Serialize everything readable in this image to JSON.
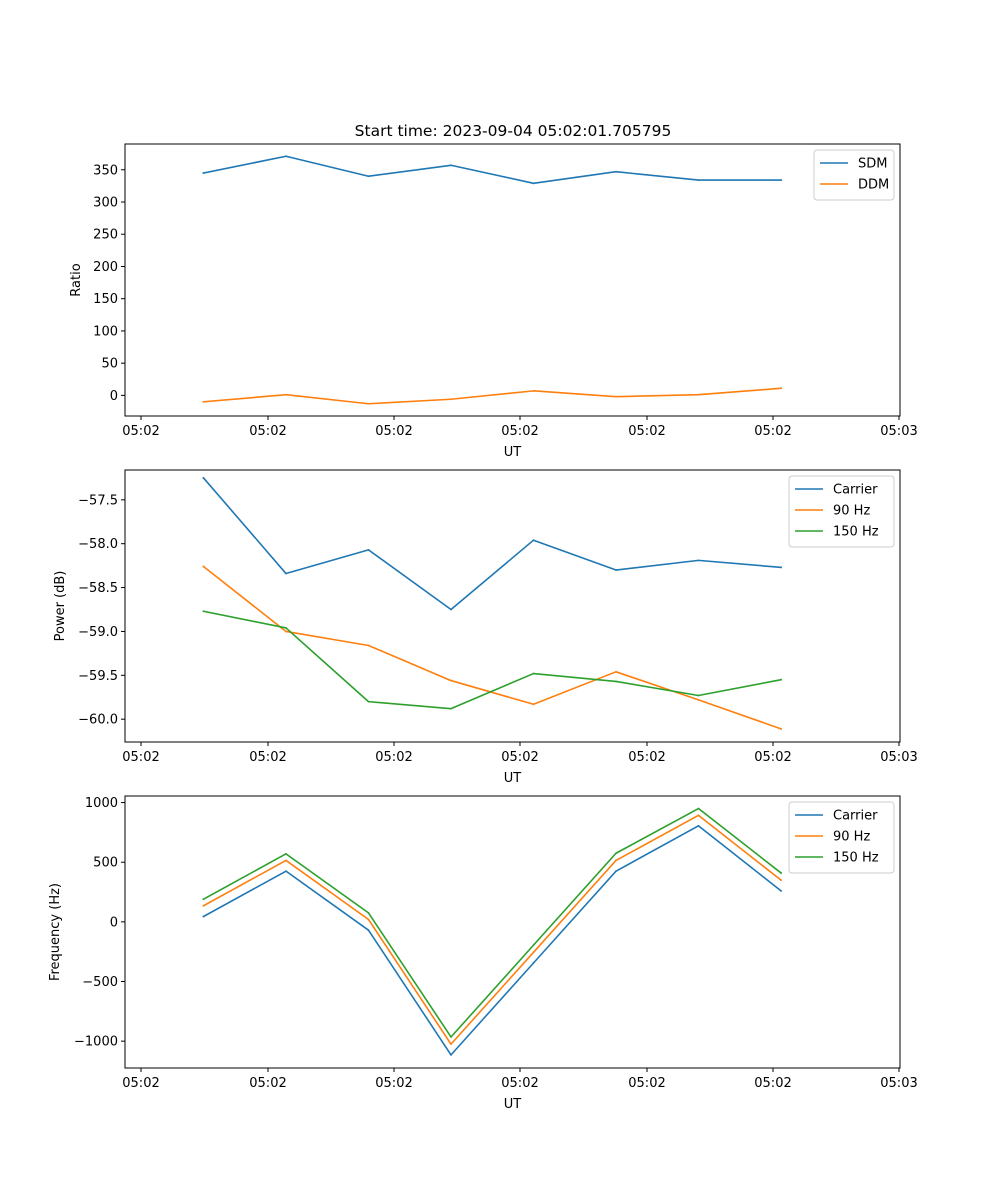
{
  "figure_title": "Start time: 2023-09-04 05:02:01.705795",
  "chart_data": [
    {
      "type": "line",
      "title": "Start time: 2023-09-04 05:02:01.705795",
      "xlabel": "UT",
      "ylabel": "Ratio",
      "x_tick_labels": [
        "05:02",
        "05:02",
        "05:02",
        "05:02",
        "05:02",
        "05:02",
        "05:03"
      ],
      "y_ticks": [
        0,
        50,
        100,
        150,
        200,
        250,
        300,
        350
      ],
      "y_tick_labels": [
        "0",
        "50",
        "100",
        "150",
        "200",
        "250",
        "300",
        "350"
      ],
      "ylim": [
        -32,
        390
      ],
      "legend_position": "upper-right",
      "series": [
        {
          "name": "SDM",
          "color": "#1f77b4",
          "values": [
            345,
            371,
            340,
            357,
            329,
            347,
            334,
            334
          ]
        },
        {
          "name": "DDM",
          "color": "#ff7f0e",
          "values": [
            -10,
            1,
            -13,
            -6,
            7,
            -2,
            1,
            11
          ]
        }
      ]
    },
    {
      "type": "line",
      "title": "",
      "xlabel": "UT",
      "ylabel": "Power (dB)",
      "x_tick_labels": [
        "05:02",
        "05:02",
        "05:02",
        "05:02",
        "05:02",
        "05:02",
        "05:03"
      ],
      "y_ticks": [
        -60.0,
        -59.5,
        -59.0,
        -58.5,
        -58.0,
        -57.5
      ],
      "y_tick_labels": [
        "−60.0",
        "−59.5",
        "−59.0",
        "−58.5",
        "−58.0",
        "−57.5"
      ],
      "ylim": [
        -60.26,
        -57.16
      ],
      "legend_position": "upper-right",
      "series": [
        {
          "name": "Carrier",
          "color": "#1f77b4",
          "values": [
            -57.25,
            -58.34,
            -58.07,
            -58.75,
            -57.96,
            -58.3,
            -58.19,
            -58.27
          ]
        },
        {
          "name": "90 Hz",
          "color": "#ff7f0e",
          "values": [
            -58.26,
            -59.0,
            -59.16,
            -59.56,
            -59.83,
            -59.46,
            -59.78,
            -60.11
          ]
        },
        {
          "name": "150 Hz",
          "color": "#2ca02c",
          "values": [
            -58.77,
            -58.96,
            -59.8,
            -59.88,
            -59.48,
            -59.57,
            -59.73,
            -59.55
          ]
        }
      ]
    },
    {
      "type": "line",
      "title": "",
      "xlabel": "UT",
      "ylabel": "Frequency (Hz)",
      "x_tick_labels": [
        "05:02",
        "05:02",
        "05:02",
        "05:02",
        "05:02",
        "05:02",
        "05:03"
      ],
      "y_ticks": [
        -1000,
        -500,
        0,
        500,
        1000
      ],
      "y_tick_labels": [
        "−1000",
        "−500",
        "0",
        "500",
        "1000"
      ],
      "ylim": [
        -1225,
        1055
      ],
      "legend_position": "upper-right",
      "series": [
        {
          "name": "Carrier",
          "color": "#1f77b4",
          "values": [
            45,
            425,
            -70,
            -1115,
            -345,
            425,
            805,
            260
          ]
        },
        {
          "name": "90 Hz",
          "color": "#ff7f0e",
          "values": [
            135,
            515,
            20,
            -1025,
            -255,
            515,
            893,
            350
          ]
        },
        {
          "name": "150 Hz",
          "color": "#2ca02c",
          "values": [
            190,
            570,
            75,
            -965,
            -195,
            575,
            950,
            410
          ]
        }
      ]
    }
  ]
}
